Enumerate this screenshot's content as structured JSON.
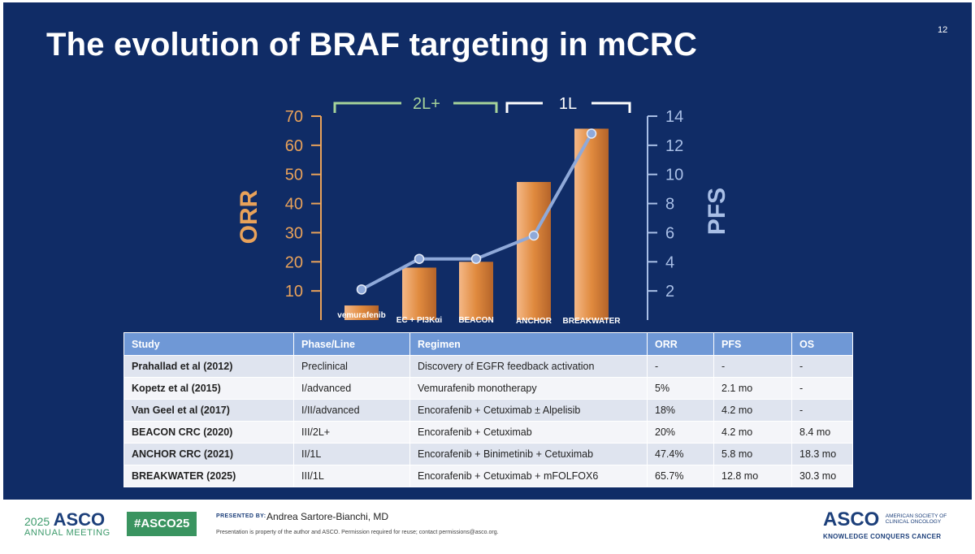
{
  "slide": {
    "title": "The evolution of BRAF targeting in mCRC",
    "number": "12"
  },
  "colors": {
    "background": "#102c66",
    "orr_axis": "#e9a25a",
    "pfs_axis": "#a9bfe6",
    "bar": "#e08a3e",
    "pfs_line": "#8fa9d9",
    "bracket_2l": "#a6d49a",
    "bracket_1l": "#ffffff",
    "table_header": "#6f98d6"
  },
  "chart_data": {
    "type": "bar",
    "categories": [
      "vemurafenib",
      "EC + PI3Kαi",
      "BEACON",
      "ANCHOR",
      "BREAKWATER"
    ],
    "series": [
      {
        "name": "ORR",
        "axis": "left",
        "kind": "bar",
        "values": [
          5,
          18,
          20,
          47.4,
          65.7
        ]
      },
      {
        "name": "PFS",
        "axis": "right",
        "kind": "line",
        "values": [
          2.1,
          4.2,
          4.2,
          5.8,
          12.8
        ]
      }
    ],
    "ylabel": "ORR",
    "y2label": "PFS",
    "ylim": [
      0,
      70
    ],
    "y2lim": [
      0,
      14
    ],
    "yticks": [
      10,
      20,
      30,
      40,
      50,
      60,
      70
    ],
    "y2ticks": [
      2,
      4,
      6,
      8,
      10,
      12,
      14
    ],
    "brackets": [
      {
        "label": "2L+",
        "from": 0,
        "to": 2
      },
      {
        "label": "1L",
        "from": 3,
        "to": 4
      }
    ]
  },
  "table": {
    "headers": [
      "Study",
      "Phase/Line",
      "Regimen",
      "ORR",
      "PFS",
      "OS"
    ],
    "rows": [
      [
        "Prahallad et al (2012)",
        "Preclinical",
        "Discovery of EGFR feedback activation",
        "-",
        "-",
        "-"
      ],
      [
        "Kopetz et al (2015)",
        "I/advanced",
        "Vemurafenib monotherapy",
        "5%",
        "2.1 mo",
        "-"
      ],
      [
        "Van Geel et al (2017)",
        "I/II/advanced",
        "Encorafenib + Cetuximab ± Alpelisib",
        "18%",
        "4.2 mo",
        "-"
      ],
      [
        "BEACON CRC (2020)",
        "III/2L+",
        "Encorafenib + Cetuximab",
        "20%",
        "4.2 mo",
        "8.4 mo"
      ],
      [
        "ANCHOR CRC (2021)",
        "II/1L",
        "Encorafenib + Binimetinib + Cetuximab",
        "47.4%",
        "5.8 mo",
        "18.3 mo"
      ],
      [
        "BREAKWATER (2025)",
        "III/1L",
        "Encorafenib + Cetuximab + mFOLFOX6",
        "65.7%",
        "12.8 mo",
        "30.3 mo"
      ]
    ]
  },
  "footer": {
    "meeting_year": "2025",
    "meeting_name": "ASCO",
    "meeting_subtitle": "ANNUAL MEETING",
    "hashtag": "#ASCO25",
    "presented_by_label": "PRESENTED BY:",
    "presenter": "Andrea Sartore-Bianchi, MD",
    "disclaimer": "Presentation is property of the author and ASCO. Permission required for reuse; contact permissions@asco.org.",
    "org_name": "ASCO",
    "org_full_line1": "AMERICAN SOCIETY OF",
    "org_full_line2": "CLINICAL ONCOLOGY",
    "org_tagline": "KNOWLEDGE CONQUERS CANCER"
  }
}
